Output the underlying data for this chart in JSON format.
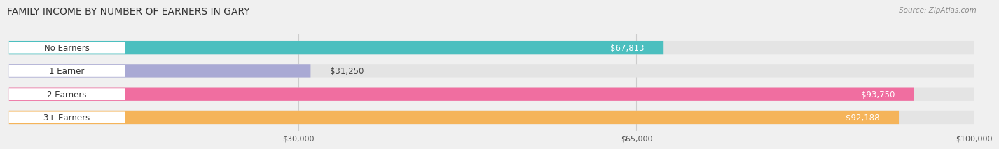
{
  "title": "FAMILY INCOME BY NUMBER OF EARNERS IN GARY",
  "source": "Source: ZipAtlas.com",
  "categories": [
    "No Earners",
    "1 Earner",
    "2 Earners",
    "3+ Earners"
  ],
  "values": [
    67813,
    31250,
    93750,
    92188
  ],
  "bar_colors": [
    "#4cbfbf",
    "#a9a9d4",
    "#f06ea0",
    "#f5b45a"
  ],
  "label_colors": [
    "#333333",
    "#333333",
    "#ffffff",
    "#ffffff"
  ],
  "x_max": 100000,
  "x_ticks": [
    30000,
    65000,
    100000
  ],
  "x_tick_labels": [
    "$30,000",
    "$65,000",
    "$100,000"
  ],
  "background_color": "#f0f0f0",
  "bar_bg_color": "#e4e4e4",
  "title_fontsize": 10,
  "source_fontsize": 7.5,
  "label_fontsize": 8.5,
  "value_fontsize": 8.5,
  "bar_height": 0.58
}
